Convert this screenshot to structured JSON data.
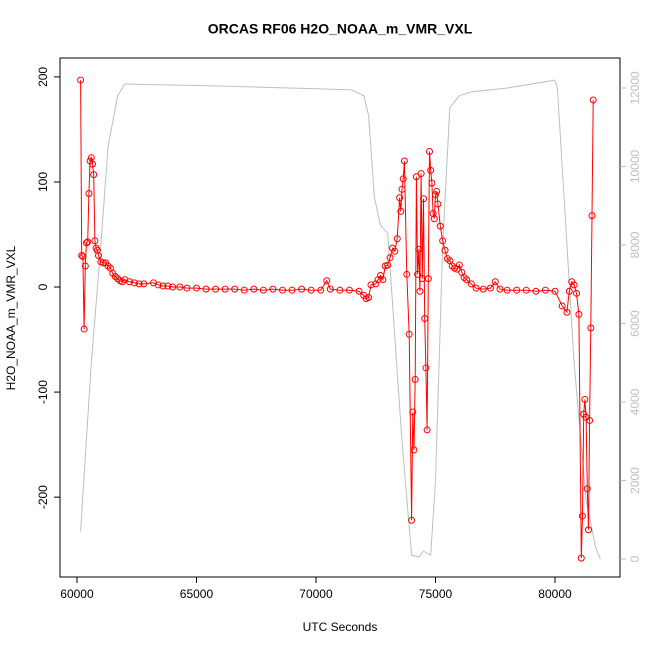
{
  "chart_data": {
    "type": "line",
    "title": "ORCAS RF06 H2O_NOAA_m_VMR_VXL",
    "x_label": "UTC Seconds",
    "y_label": "H2O_NOAA_m_VMR_VXL",
    "xlim": [
      59290,
      82720
    ],
    "xticks": [
      60000,
      65000,
      70000,
      75000,
      80000
    ],
    "ylim": [
      -276,
      218
    ],
    "yticks": [
      -200,
      -100,
      0,
      100,
      200
    ],
    "y2lim": [
      -459,
      12764
    ],
    "y2ticks": [
      0,
      2000,
      4000,
      6000,
      8000,
      10000,
      12000
    ],
    "y2_color": "#bebebe",
    "series": [
      {
        "color": "#bebebe",
        "axis": "y2",
        "markers": false,
        "x": [
          60150,
          60600,
          61000,
          61300,
          61700,
          62000,
          66000,
          70000,
          71500,
          72000,
          72200,
          72450,
          72700,
          73000,
          73600,
          74000,
          74300,
          74500,
          74800,
          75000,
          75300,
          75600,
          76000,
          76500,
          78000,
          80000,
          80100,
          80300,
          80800,
          81300,
          81700,
          81900
        ],
        "values": [
          700,
          5000,
          8000,
          10500,
          11800,
          12100,
          12050,
          11980,
          11950,
          11800,
          11300,
          9200,
          8500,
          8300,
          3000,
          100,
          50,
          200,
          100,
          2000,
          8000,
          11500,
          11800,
          11900,
          12000,
          12200,
          12000,
          10000,
          5000,
          1500,
          300,
          0
        ]
      },
      {
        "color": "#ff0000",
        "axis": "y",
        "markers": true,
        "x": [
          60150,
          60200,
          60250,
          60300,
          60350,
          60400,
          60450,
          60500,
          60550,
          60600,
          60650,
          60700,
          60750,
          60800,
          60850,
          60900,
          61000,
          61100,
          61200,
          61300,
          61400,
          61500,
          61600,
          61700,
          61800,
          61900,
          62000,
          62200,
          62400,
          62600,
          62800,
          63200,
          63400,
          63600,
          63800,
          64000,
          64300,
          64600,
          65000,
          65400,
          65800,
          66200,
          66600,
          67000,
          67400,
          67800,
          68200,
          68600,
          69000,
          69400,
          69800,
          70200,
          70450,
          70600,
          71000,
          71400,
          71800,
          72000,
          72100,
          72200,
          72300,
          72500,
          72600,
          72700,
          72800,
          72900,
          73000,
          73100,
          73200,
          73300,
          73400,
          73500,
          73550,
          73600,
          73650,
          73700,
          73800,
          73900,
          74000,
          74050,
          74100,
          74150,
          74200,
          74250,
          74300,
          74350,
          74400,
          74450,
          74500,
          74550,
          74600,
          74650,
          74700,
          74750,
          74800,
          74850,
          74900,
          74950,
          75000,
          75050,
          75100,
          75200,
          75300,
          75400,
          75500,
          75600,
          75700,
          75800,
          75900,
          76000,
          76100,
          76200,
          76300,
          76500,
          76700,
          77000,
          77300,
          77500,
          77700,
          78000,
          78400,
          78800,
          79200,
          79600,
          80000,
          80300,
          80500,
          80600,
          80700,
          80800,
          80900,
          81000,
          81100,
          81150,
          81200,
          81250,
          81300,
          81350,
          81400,
          81450,
          81500,
          81550,
          81600
        ],
        "values": [
          197,
          30,
          29,
          -40,
          20,
          42,
          43,
          89,
          120,
          123,
          117,
          107,
          44,
          37,
          35,
          30,
          24,
          23,
          23,
          20,
          18,
          13,
          10,
          8,
          6,
          5,
          7,
          5,
          4,
          3,
          3,
          4,
          2,
          1,
          1,
          0,
          0,
          -1,
          -1,
          -2,
          -2,
          -2,
          -2,
          -3,
          -2,
          -3,
          -2,
          -3,
          -3,
          -2,
          -3,
          -3,
          6,
          -2,
          -3,
          -3,
          -4,
          -8,
          -11,
          -10,
          2,
          3,
          7,
          11,
          7,
          20,
          21,
          28,
          37,
          34,
          46,
          85,
          72,
          93,
          103,
          120,
          12,
          -45,
          -222,
          -119,
          -155,
          -88,
          105,
          12,
          36,
          -4,
          108,
          8,
          84,
          -30,
          -77,
          -136,
          8,
          129,
          111,
          99,
          70,
          65,
          88,
          91,
          79,
          58,
          44,
          35,
          27,
          25,
          20,
          18,
          17,
          21,
          14,
          9,
          7,
          3,
          -1,
          -2,
          -1,
          5,
          -2,
          -3,
          -3,
          -3,
          -4,
          -3,
          -4,
          -18,
          -24,
          -4,
          5,
          2,
          -6,
          -26,
          -258,
          -218,
          -121,
          -107,
          -124,
          -192,
          -231,
          -127,
          -39,
          68,
          178
        ]
      }
    ]
  }
}
